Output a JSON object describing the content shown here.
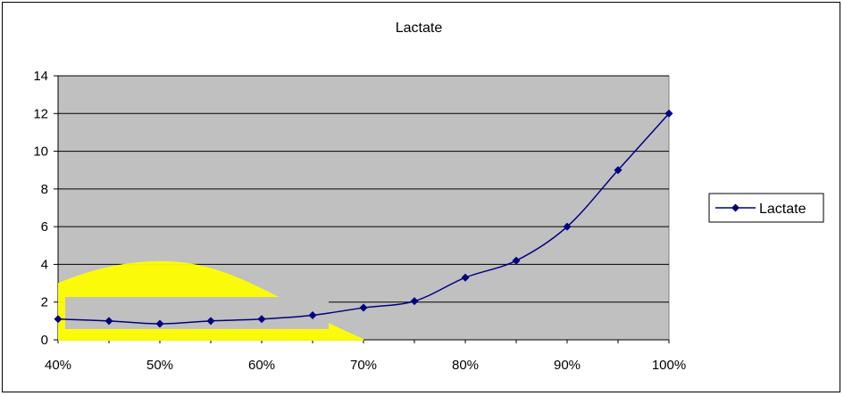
{
  "chart_data": {
    "type": "line",
    "title": "Lactate",
    "xlabel": "",
    "ylabel": "",
    "x": [
      "40%",
      "45%",
      "50%",
      "55%",
      "60%",
      "65%",
      "70%",
      "75%",
      "80%",
      "85%",
      "90%",
      "95%",
      "100%"
    ],
    "x_values": [
      40,
      45,
      50,
      55,
      60,
      65,
      70,
      75,
      80,
      85,
      90,
      95,
      100
    ],
    "x_ticks": [
      "40%",
      "50%",
      "60%",
      "70%",
      "80%",
      "90%",
      "100%"
    ],
    "x_tick_values": [
      40,
      50,
      60,
      70,
      80,
      90,
      100
    ],
    "xlim": [
      40,
      100
    ],
    "ylim": [
      0,
      14
    ],
    "y_ticks": [
      "0",
      "2",
      "4",
      "6",
      "8",
      "10",
      "12",
      "14"
    ],
    "y_tick_values": [
      0,
      2,
      4,
      6,
      8,
      10,
      12,
      14
    ],
    "grid": "horizontal",
    "legend_position": "right",
    "series": [
      {
        "name": "Lactate",
        "values": [
          1.1,
          1.0,
          0.85,
          1.0,
          1.1,
          1.3,
          1.7,
          2.05,
          3.3,
          4.2,
          6.0,
          9.0,
          12.0
        ],
        "color": "#000080",
        "marker": "diamond"
      }
    ],
    "plot_background": "#c0c0c0",
    "annotation": {
      "type": "highlight-shape",
      "color": "#ffff00"
    }
  }
}
